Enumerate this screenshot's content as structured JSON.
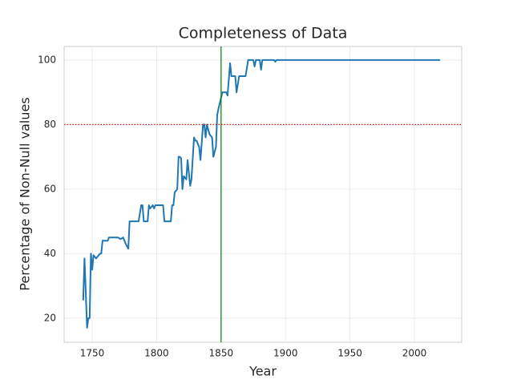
{
  "chart_data": {
    "type": "line",
    "title": "Completeness of Data",
    "x_label": "Year",
    "y_label": "Percentage of Non-Null values",
    "xlim": [
      1728.2,
      2036.7
    ],
    "ylim": [
      12.5,
      104.2
    ],
    "xticks": [
      1750,
      1800,
      1850,
      1900,
      1950,
      2000
    ],
    "yticks": [
      20,
      40,
      60,
      80,
      100
    ],
    "grid": true,
    "hlines": [
      {
        "value": 80,
        "color": "#e31a1c",
        "style": "dotted"
      }
    ],
    "vlines": [
      {
        "value": 1850,
        "color": "#008000",
        "style": "solid"
      }
    ],
    "series": [
      {
        "color": "#1f77b4",
        "x": [
          1743,
          1744,
          1745,
          1746,
          1747,
          1748,
          1749,
          1750,
          1751,
          1753,
          1756,
          1757,
          1758,
          1762,
          1763,
          1770,
          1772,
          1774,
          1776,
          1778,
          1779,
          1786,
          1788,
          1789,
          1790,
          1793,
          1794,
          1795,
          1797,
          1798,
          1799,
          1805,
          1806,
          1811,
          1812,
          1813,
          1814,
          1816,
          1817,
          1818,
          1819,
          1820,
          1821,
          1823,
          1824,
          1826,
          1827,
          1829,
          1830,
          1831,
          1833,
          1834,
          1836,
          1837,
          1838,
          1839,
          1841,
          1843,
          1844,
          1846,
          1847,
          1848,
          1851,
          1853,
          1854,
          1855,
          1857,
          1858,
          1861,
          1862,
          1864,
          1869,
          1871,
          1875,
          1876,
          1877,
          1880,
          1881,
          1882,
          1891,
          1892,
          1893,
          2020
        ],
        "values": [
          25.5,
          38.5,
          28,
          17,
          20,
          20,
          40,
          35,
          39.5,
          38.5,
          40,
          40,
          44,
          44,
          45,
          45,
          44.5,
          45,
          43,
          41.5,
          50,
          50,
          55,
          55,
          50,
          50,
          55,
          54,
          55,
          54,
          55,
          55,
          50,
          50,
          55,
          55,
          59,
          60,
          70,
          70,
          69.5,
          60,
          64,
          63,
          69,
          61,
          63,
          76,
          75,
          75,
          73,
          69,
          80,
          80,
          76,
          80,
          77,
          76,
          70,
          73,
          83,
          85,
          90,
          90,
          90,
          89,
          99,
          95,
          95,
          90,
          95,
          95,
          100,
          100,
          98,
          100,
          100,
          97,
          100,
          100,
          99.5,
          100,
          100
        ]
      }
    ]
  }
}
